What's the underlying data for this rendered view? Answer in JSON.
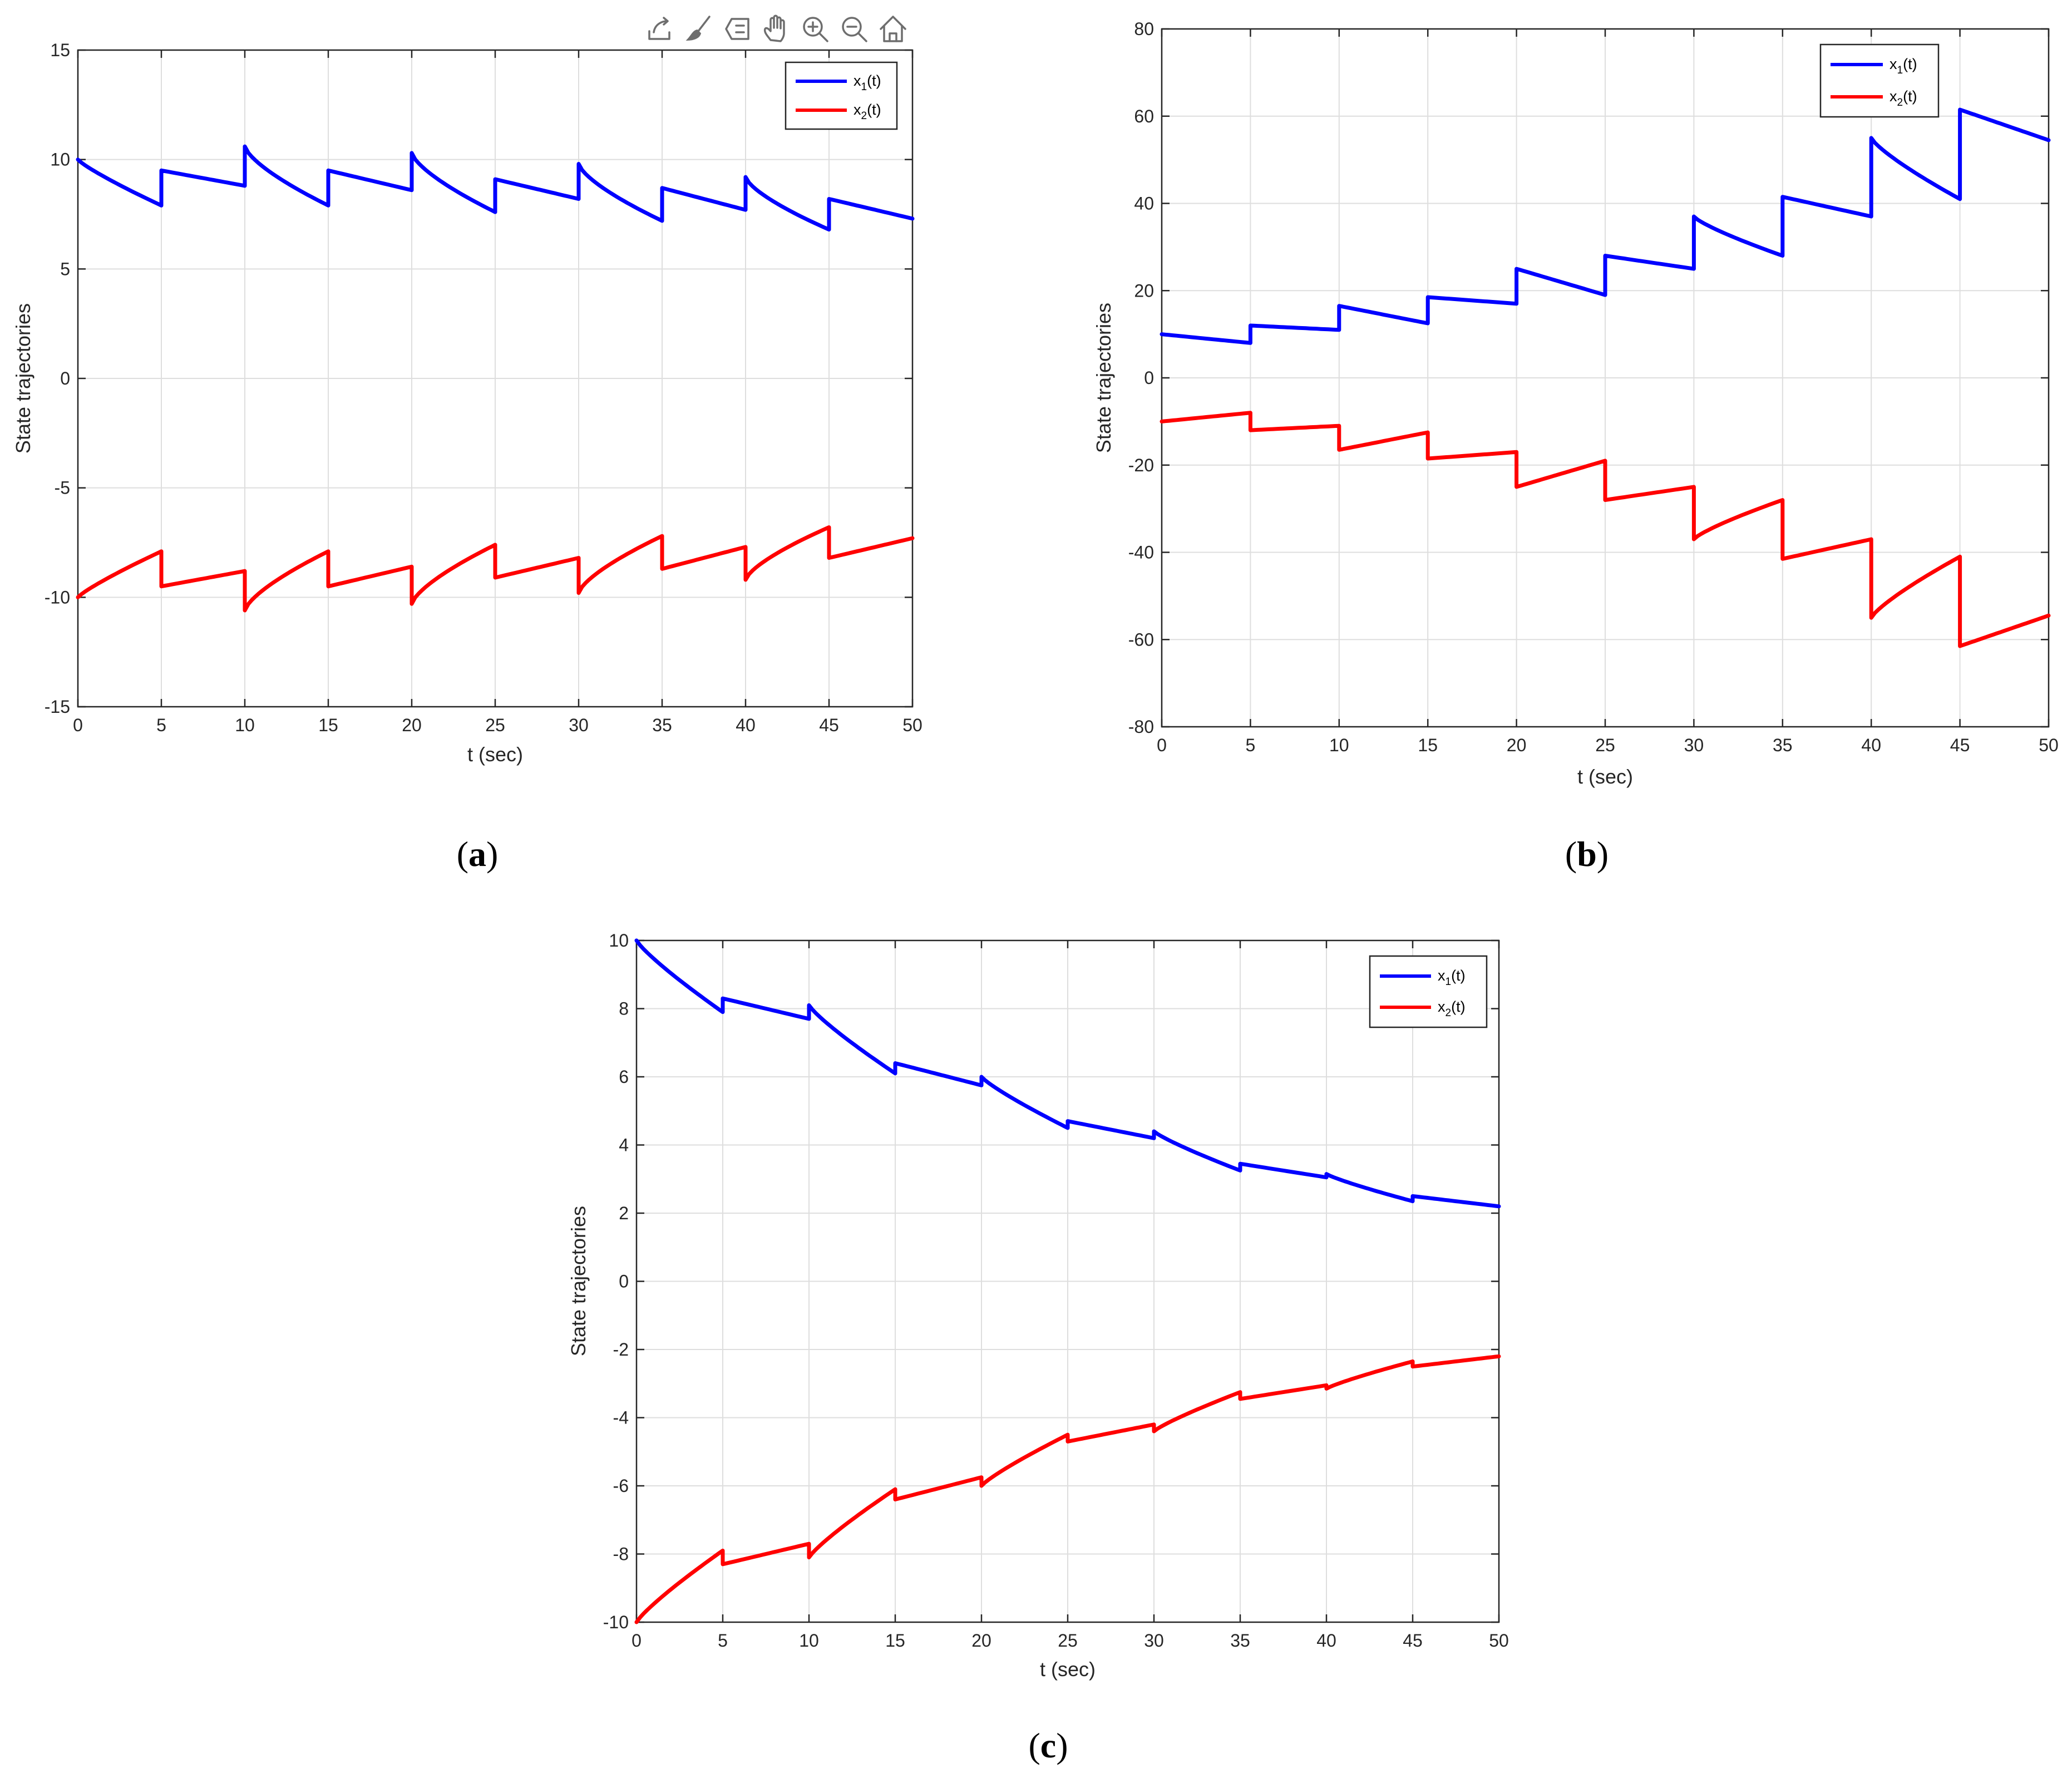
{
  "toolbar": {
    "icons": [
      "export-icon",
      "brush-icon",
      "data-tips-icon",
      "pan-hand-icon",
      "zoom-in-icon",
      "zoom-out-icon",
      "home-icon"
    ]
  },
  "chart_data": [
    {
      "id": "a",
      "type": "line",
      "caption_open": "(",
      "caption_letter": "a",
      "caption_close": ")",
      "xlabel": "t (sec)",
      "ylabel": "State trajectories",
      "xlim": [
        0,
        50
      ],
      "ylim": [
        -15,
        15
      ],
      "xticks": [
        0,
        5,
        10,
        15,
        20,
        25,
        30,
        35,
        40,
        45,
        50
      ],
      "yticks": [
        -15,
        -10,
        -5,
        0,
        5,
        10,
        15
      ],
      "ytick_labels": [
        "-15",
        "-10",
        "-5",
        "0",
        "5",
        "10",
        "15"
      ],
      "grid": true,
      "legend_position": "top-right",
      "series": [
        {
          "name": "x",
          "subscript": "1",
          "suffix": "(t)",
          "color": "#0000ff",
          "segments": [
            {
              "x0": 0,
              "y0": 10.0,
              "y1": 7.9,
              "exp": 0.85
            },
            {
              "x0": 5,
              "y0": 9.5,
              "y1": 8.8,
              "exp": 1
            },
            {
              "x0": 10,
              "y0": 10.6,
              "y1": 7.9,
              "exp": 0.7
            },
            {
              "x0": 15,
              "y0": 9.5,
              "y1": 8.6,
              "exp": 1
            },
            {
              "x0": 20,
              "y0": 10.3,
              "y1": 7.6,
              "exp": 0.7
            },
            {
              "x0": 25,
              "y0": 9.1,
              "y1": 8.2,
              "exp": 1
            },
            {
              "x0": 30,
              "y0": 9.8,
              "y1": 7.2,
              "exp": 0.7
            },
            {
              "x0": 35,
              "y0": 8.7,
              "y1": 7.7,
              "exp": 1
            },
            {
              "x0": 40,
              "y0": 9.2,
              "y1": 6.8,
              "exp": 0.7
            },
            {
              "x0": 45,
              "y0": 8.2,
              "y1": 7.3,
              "exp": 1
            }
          ]
        },
        {
          "name": "x",
          "subscript": "2",
          "suffix": "(t)",
          "color": "#ff0000",
          "segments": [
            {
              "x0": 0,
              "y0": -10.0,
              "y1": -7.9,
              "exp": 0.85
            },
            {
              "x0": 5,
              "y0": -9.5,
              "y1": -8.8,
              "exp": 1
            },
            {
              "x0": 10,
              "y0": -10.6,
              "y1": -7.9,
              "exp": 0.7
            },
            {
              "x0": 15,
              "y0": -9.5,
              "y1": -8.6,
              "exp": 1
            },
            {
              "x0": 20,
              "y0": -10.3,
              "y1": -7.6,
              "exp": 0.7
            },
            {
              "x0": 25,
              "y0": -9.1,
              "y1": -8.2,
              "exp": 1
            },
            {
              "x0": 30,
              "y0": -9.8,
              "y1": -7.2,
              "exp": 0.7
            },
            {
              "x0": 35,
              "y0": -8.7,
              "y1": -7.7,
              "exp": 1
            },
            {
              "x0": 40,
              "y0": -9.2,
              "y1": -6.8,
              "exp": 0.7
            },
            {
              "x0": 45,
              "y0": -8.2,
              "y1": -7.3,
              "exp": 1
            }
          ]
        }
      ]
    },
    {
      "id": "b",
      "type": "line",
      "caption_open": "(",
      "caption_letter": "b",
      "caption_close": ")",
      "xlabel": "t (sec)",
      "ylabel": "State trajectories",
      "xlim": [
        0,
        50
      ],
      "ylim": [
        -80,
        80
      ],
      "xticks": [
        0,
        5,
        10,
        15,
        20,
        25,
        30,
        35,
        40,
        45,
        50
      ],
      "yticks": [
        -80,
        -60,
        -40,
        -20,
        0,
        20,
        40,
        60,
        80
      ],
      "ytick_labels": [
        "-80",
        "-60",
        "-40",
        "-20",
        "0",
        "20",
        "40",
        "60",
        "80"
      ],
      "grid": true,
      "legend_position": "top-right",
      "series": [
        {
          "name": "x",
          "subscript": "1",
          "suffix": "(t)",
          "color": "#0000ff",
          "segments": [
            {
              "x0": 0,
              "y0": 10.0,
              "y1": 8.0,
              "exp": 1
            },
            {
              "x0": 5,
              "y0": 12.0,
              "y1": 11.0,
              "exp": 1
            },
            {
              "x0": 10,
              "y0": 16.5,
              "y1": 12.5,
              "exp": 1
            },
            {
              "x0": 15,
              "y0": 18.5,
              "y1": 17.0,
              "exp": 1
            },
            {
              "x0": 20,
              "y0": 25.0,
              "y1": 19.0,
              "exp": 1
            },
            {
              "x0": 25,
              "y0": 28.0,
              "y1": 25.0,
              "exp": 1
            },
            {
              "x0": 30,
              "y0": 37.0,
              "y1": 28.0,
              "exp": 0.8
            },
            {
              "x0": 35,
              "y0": 41.5,
              "y1": 37.0,
              "exp": 1
            },
            {
              "x0": 40,
              "y0": 55.0,
              "y1": 41.0,
              "exp": 0.8
            },
            {
              "x0": 45,
              "y0": 61.5,
              "y1": 54.5,
              "exp": 1
            }
          ]
        },
        {
          "name": "x",
          "subscript": "2",
          "suffix": "(t)",
          "color": "#ff0000",
          "segments": [
            {
              "x0": 0,
              "y0": -10.0,
              "y1": -8.0,
              "exp": 1
            },
            {
              "x0": 5,
              "y0": -12.0,
              "y1": -11.0,
              "exp": 1
            },
            {
              "x0": 10,
              "y0": -16.5,
              "y1": -12.5,
              "exp": 1
            },
            {
              "x0": 15,
              "y0": -18.5,
              "y1": -17.0,
              "exp": 1
            },
            {
              "x0": 20,
              "y0": -25.0,
              "y1": -19.0,
              "exp": 1
            },
            {
              "x0": 25,
              "y0": -28.0,
              "y1": -25.0,
              "exp": 1
            },
            {
              "x0": 30,
              "y0": -37.0,
              "y1": -28.0,
              "exp": 0.8
            },
            {
              "x0": 35,
              "y0": -41.5,
              "y1": -37.0,
              "exp": 1
            },
            {
              "x0": 40,
              "y0": -55.0,
              "y1": -41.0,
              "exp": 0.8
            },
            {
              "x0": 45,
              "y0": -61.5,
              "y1": -54.5,
              "exp": 1
            }
          ]
        }
      ]
    },
    {
      "id": "c",
      "type": "line",
      "caption_open": "(",
      "caption_letter": "c",
      "caption_close": ")",
      "xlabel": "t (sec)",
      "ylabel": "State trajectories",
      "xlim": [
        0,
        50
      ],
      "ylim": [
        -10,
        10
      ],
      "xticks": [
        0,
        5,
        10,
        15,
        20,
        25,
        30,
        35,
        40,
        45,
        50
      ],
      "yticks": [
        -10,
        -8,
        -6,
        -4,
        -2,
        0,
        2,
        4,
        6,
        8,
        10
      ],
      "ytick_labels": [
        "-10",
        "-8",
        "-6",
        "-4",
        "-2",
        "0",
        "2",
        "4",
        "6",
        "8",
        "10"
      ],
      "grid": true,
      "legend_position": "top-right",
      "series": [
        {
          "name": "x",
          "subscript": "1",
          "suffix": "(t)",
          "color": "#0000ff",
          "segments": [
            {
              "x0": 0,
              "y0": 10.0,
              "y1": 7.9,
              "exp": 0.85
            },
            {
              "x0": 5,
              "y0": 8.3,
              "y1": 7.7,
              "exp": 1
            },
            {
              "x0": 10,
              "y0": 8.1,
              "y1": 6.1,
              "exp": 0.85
            },
            {
              "x0": 15,
              "y0": 6.4,
              "y1": 5.75,
              "exp": 1
            },
            {
              "x0": 20,
              "y0": 6.0,
              "y1": 4.5,
              "exp": 0.85
            },
            {
              "x0": 25,
              "y0": 4.7,
              "y1": 4.2,
              "exp": 1
            },
            {
              "x0": 30,
              "y0": 4.4,
              "y1": 3.25,
              "exp": 0.85
            },
            {
              "x0": 35,
              "y0": 3.45,
              "y1": 3.05,
              "exp": 1
            },
            {
              "x0": 40,
              "y0": 3.15,
              "y1": 2.35,
              "exp": 0.85
            },
            {
              "x0": 45,
              "y0": 2.5,
              "y1": 2.2,
              "exp": 1
            }
          ]
        },
        {
          "name": "x",
          "subscript": "2",
          "suffix": "(t)",
          "color": "#ff0000",
          "segments": [
            {
              "x0": 0,
              "y0": -10.0,
              "y1": -7.9,
              "exp": 0.85
            },
            {
              "x0": 5,
              "y0": -8.3,
              "y1": -7.7,
              "exp": 1
            },
            {
              "x0": 10,
              "y0": -8.1,
              "y1": -6.1,
              "exp": 0.85
            },
            {
              "x0": 15,
              "y0": -6.4,
              "y1": -5.75,
              "exp": 1
            },
            {
              "x0": 20,
              "y0": -6.0,
              "y1": -4.5,
              "exp": 0.85
            },
            {
              "x0": 25,
              "y0": -4.7,
              "y1": -4.2,
              "exp": 1
            },
            {
              "x0": 30,
              "y0": -4.4,
              "y1": -3.25,
              "exp": 0.85
            },
            {
              "x0": 35,
              "y0": -3.45,
              "y1": -3.05,
              "exp": 1
            },
            {
              "x0": 40,
              "y0": -3.15,
              "y1": -2.35,
              "exp": 0.85
            },
            {
              "x0": 45,
              "y0": -2.5,
              "y1": -2.2,
              "exp": 1
            }
          ]
        }
      ]
    }
  ]
}
